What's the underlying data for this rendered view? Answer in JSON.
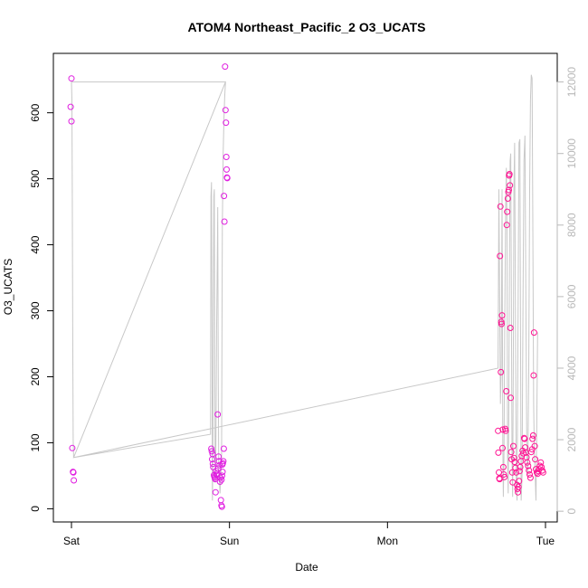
{
  "chart_data": {
    "type": "scatter",
    "title": "ATOM4 Northeast_Pacific_2 O3_UCATS",
    "xlabel": "Date",
    "ylabel": "O3_UCATS",
    "x_ticks": [
      "Sat",
      "Sun",
      "Mon",
      "Tue"
    ],
    "x_unit": "days since Saturday 00:00",
    "xlim": [
      0,
      3.0
    ],
    "ylim": [
      -20,
      690
    ],
    "y_ticks": [
      0,
      100,
      200,
      300,
      400,
      500,
      600
    ],
    "y2lim": [
      -300,
      12800
    ],
    "y2_ticks": [
      0,
      2000,
      4000,
      6000,
      8000,
      10000,
      12000
    ],
    "grid": false,
    "colors": {
      "points": "#ff1493",
      "points_alt": "#e01ee0",
      "altitude_line": "#c8c8c8",
      "right_axis": "#b8b8b8"
    },
    "series": [
      {
        "kind": "points",
        "points": [
          [
            0.0,
            652
          ],
          [
            -0.005,
            609
          ],
          [
            0.0,
            587
          ],
          [
            0.005,
            92
          ],
          [
            0.01,
            56
          ],
          [
            0.012,
            55
          ],
          [
            0.015,
            43
          ],
          [
            0.885,
            91
          ],
          [
            0.888,
            87
          ],
          [
            0.893,
            83
          ],
          [
            0.89,
            75
          ],
          [
            0.895,
            68
          ],
          [
            0.897,
            63
          ],
          [
            0.902,
            51
          ],
          [
            0.904,
            49
          ],
          [
            0.907,
            47
          ],
          [
            0.91,
            45
          ],
          [
            0.912,
            25
          ],
          [
            0.915,
            57
          ],
          [
            0.918,
            53
          ],
          [
            0.92,
            51
          ],
          [
            0.925,
            143
          ],
          [
            0.928,
            61
          ],
          [
            0.931,
            79
          ],
          [
            0.934,
            72
          ],
          [
            0.937,
            66
          ],
          [
            0.94,
            41
          ],
          [
            0.943,
            47
          ],
          [
            0.946,
            13
          ],
          [
            0.949,
            5
          ],
          [
            0.952,
            3
          ],
          [
            0.955,
            67
          ],
          [
            0.958,
            69
          ],
          [
            0.961,
            72
          ],
          [
            0.964,
            91
          ],
          [
            0.95,
            44
          ],
          [
            0.953,
            50
          ],
          [
            0.956,
            56
          ],
          [
            0.965,
            474
          ],
          [
            0.968,
            435
          ],
          [
            0.972,
            670
          ],
          [
            0.975,
            604
          ],
          [
            0.978,
            585
          ],
          [
            0.98,
            533
          ],
          [
            0.982,
            514
          ],
          [
            0.984,
            502
          ],
          [
            0.986,
            501
          ],
          [
            2.7,
            118
          ],
          [
            2.702,
            85
          ],
          [
            2.705,
            55
          ],
          [
            2.708,
            46
          ],
          [
            2.71,
            45
          ],
          [
            2.712,
            383
          ],
          [
            2.715,
            458
          ],
          [
            2.718,
            207
          ],
          [
            2.72,
            283
          ],
          [
            2.722,
            280
          ],
          [
            2.725,
            293
          ],
          [
            2.728,
            92
          ],
          [
            2.73,
            120
          ],
          [
            2.733,
            63
          ],
          [
            2.736,
            52
          ],
          [
            2.74,
            48
          ],
          [
            2.745,
            121
          ],
          [
            2.748,
            118
          ],
          [
            2.752,
            178
          ],
          [
            2.755,
            430
          ],
          [
            2.758,
            450
          ],
          [
            2.762,
            470
          ],
          [
            2.765,
            480
          ],
          [
            2.768,
            483
          ],
          [
            2.77,
            505
          ],
          [
            2.772,
            507
          ],
          [
            2.775,
            490
          ],
          [
            2.778,
            274
          ],
          [
            2.78,
            168
          ],
          [
            2.783,
            86
          ],
          [
            2.786,
            75
          ],
          [
            2.79,
            55
          ],
          [
            2.793,
            40
          ],
          [
            2.797,
            95
          ],
          [
            2.8,
            77
          ],
          [
            2.805,
            71
          ],
          [
            2.81,
            62
          ],
          [
            2.815,
            55
          ],
          [
            2.82,
            36
          ],
          [
            2.823,
            30
          ],
          [
            2.826,
            25
          ],
          [
            2.829,
            33
          ],
          [
            2.833,
            42
          ],
          [
            2.836,
            57
          ],
          [
            2.84,
            63
          ],
          [
            2.845,
            72
          ],
          [
            2.85,
            80
          ],
          [
            2.855,
            88
          ],
          [
            2.86,
            84
          ],
          [
            2.865,
            107
          ],
          [
            2.868,
            106
          ],
          [
            2.872,
            93
          ],
          [
            2.876,
            85
          ],
          [
            2.88,
            78
          ],
          [
            2.885,
            70
          ],
          [
            2.89,
            65
          ],
          [
            2.895,
            58
          ],
          [
            2.9,
            52
          ],
          [
            2.905,
            47
          ],
          [
            2.91,
            86
          ],
          [
            2.915,
            90
          ],
          [
            2.918,
            106
          ],
          [
            2.922,
            111
          ],
          [
            2.925,
            202
          ],
          [
            2.928,
            267
          ],
          [
            2.932,
            95
          ],
          [
            2.935,
            75
          ],
          [
            2.94,
            60
          ],
          [
            2.945,
            55
          ],
          [
            2.95,
            53
          ],
          [
            2.955,
            57
          ],
          [
            2.96,
            60
          ],
          [
            2.965,
            65
          ],
          [
            2.97,
            70
          ],
          [
            2.975,
            63
          ],
          [
            2.98,
            58
          ],
          [
            2.985,
            55
          ]
        ]
      },
      {
        "kind": "altitude_line",
        "axis": "right",
        "points": [
          [
            0.0,
            12000
          ],
          [
            0.003,
            11500
          ],
          [
            0.005,
            9000
          ],
          [
            0.008,
            5000
          ],
          [
            0.011,
            2000
          ],
          [
            0.014,
            1500
          ],
          [
            0.88,
            2150
          ],
          [
            0.883,
            8800
          ],
          [
            0.886,
            9200
          ],
          [
            0.889,
            5000
          ],
          [
            0.892,
            300
          ],
          [
            0.895,
            1500
          ],
          [
            0.898,
            6000
          ],
          [
            0.901,
            8800
          ],
          [
            0.904,
            9000
          ],
          [
            0.907,
            4000
          ],
          [
            0.91,
            800
          ],
          [
            0.913,
            1500
          ],
          [
            0.916,
            3000
          ],
          [
            0.919,
            5200
          ],
          [
            0.923,
            7000
          ],
          [
            0.926,
            8500
          ],
          [
            0.929,
            3500
          ],
          [
            0.932,
            1200
          ],
          [
            0.94,
            500
          ],
          [
            0.945,
            1000
          ],
          [
            0.95,
            1300
          ],
          [
            0.955,
            8000
          ],
          [
            0.96,
            10000
          ],
          [
            0.965,
            11000
          ],
          [
            0.97,
            11600
          ],
          [
            0.975,
            12000
          ],
          [
            0.0,
            12000
          ],
          [
            0.975,
            12000
          ],
          [
            0.014,
            1500
          ],
          [
            2.7,
            4000
          ],
          [
            2.7,
            4200
          ],
          [
            2.705,
            9000
          ],
          [
            2.71,
            6000
          ],
          [
            2.715,
            3000
          ],
          [
            2.72,
            4000
          ],
          [
            2.725,
            9000
          ],
          [
            2.73,
            2000
          ],
          [
            2.733,
            400
          ],
          [
            2.737,
            1500
          ],
          [
            2.742,
            5000
          ],
          [
            2.748,
            8500
          ],
          [
            2.752,
            9600
          ],
          [
            2.756,
            8000
          ],
          [
            2.76,
            1500
          ],
          [
            2.764,
            500
          ],
          [
            2.768,
            3000
          ],
          [
            2.772,
            7000
          ],
          [
            2.776,
            9800
          ],
          [
            2.78,
            10000
          ],
          [
            2.784,
            6000
          ],
          [
            2.788,
            1500
          ],
          [
            2.792,
            400
          ],
          [
            2.796,
            4000
          ],
          [
            2.8,
            9000
          ],
          [
            2.805,
            10300
          ],
          [
            2.81,
            5500
          ],
          [
            2.815,
            700
          ],
          [
            2.82,
            300
          ],
          [
            2.826,
            5000
          ],
          [
            2.832,
            10300
          ],
          [
            2.838,
            10400
          ],
          [
            2.842,
            5000
          ],
          [
            2.846,
            300
          ],
          [
            2.852,
            1000
          ],
          [
            2.858,
            6000
          ],
          [
            2.864,
            9800
          ],
          [
            2.87,
            10500
          ],
          [
            2.876,
            6000
          ],
          [
            2.882,
            1500
          ],
          [
            2.888,
            1000
          ],
          [
            2.894,
            4000
          ],
          [
            2.9,
            9000
          ],
          [
            2.905,
            11500
          ],
          [
            2.91,
            12200
          ],
          [
            2.915,
            12100
          ],
          [
            2.92,
            8000
          ],
          [
            2.925,
            3000
          ],
          [
            2.93,
            1500
          ],
          [
            2.935,
            1000
          ],
          [
            2.94,
            300
          ],
          [
            2.945,
            2500
          ],
          [
            2.95,
            5000
          ]
        ]
      }
    ]
  }
}
